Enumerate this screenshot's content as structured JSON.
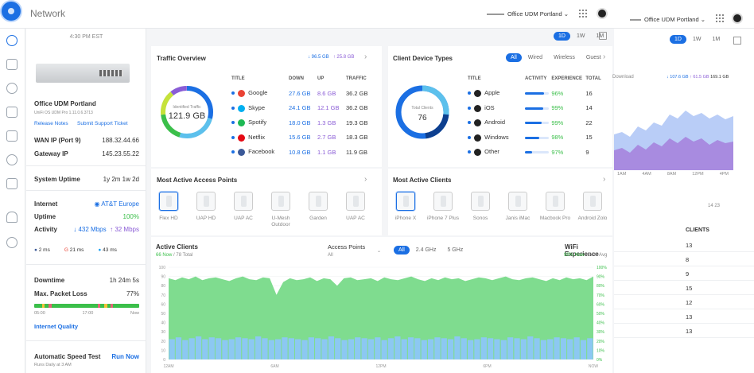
{
  "app": {
    "title": "Network",
    "site": "Office UDM Portland",
    "site_right": "Office UDM Portland"
  },
  "device": {
    "time": "4:30 PM EST",
    "name": "Office UDM Portland",
    "subtitle": "UniFi OS UDM Pro 1.11.0.6.3713",
    "release_notes": "Release Notes",
    "support": "Submit Support Ticket",
    "wan_label": "WAN IP (Port 9)",
    "wan_value": "188.32.44.66",
    "gw_label": "Gateway IP",
    "gw_value": "145.23.55.22",
    "uptime_label": "System Uptime",
    "uptime_value": "1y 2m 1w 2d",
    "internet_label": "Internet",
    "isp": "AT&T Europe",
    "uptime2_label": "Uptime",
    "uptime2_value": "100%",
    "activity_label": "Activity",
    "down": "432 Mbps",
    "up": "32 Mbps",
    "pings": [
      "2 ms",
      "21 ms",
      "43 ms"
    ],
    "downtime_label": "Downtime",
    "downtime_value": "1h 24m 5s",
    "loss_label": "Max. Packet Loss",
    "loss_value": "77%",
    "bar_ticks": [
      "05:00",
      "17:00",
      "Now"
    ],
    "quality_link": "Internet Quality",
    "speed_label": "Automatic Speed Test",
    "speed_action": "Run Now",
    "speed_sub": "Runs Daily at 3 AM"
  },
  "range_tabs": [
    "1D",
    "1W",
    "1M"
  ],
  "traffic": {
    "title": "Traffic Overview",
    "down": "96.5 GB",
    "up": "25.8 GB",
    "donut_label": "Identified Traffic",
    "donut_value": "121.9 GB",
    "headers": [
      "TITLE",
      "DOWN",
      "UP",
      "TRAFFIC"
    ],
    "rows": [
      {
        "name": "Google",
        "down": "27.6 GB",
        "up": "8.6 GB",
        "total": "36.2 GB",
        "color": "#ea4335"
      },
      {
        "name": "Skype",
        "down": "24.1 GB",
        "up": "12.1 GB",
        "total": "36.2 GB",
        "color": "#00aff0"
      },
      {
        "name": "Spotify",
        "down": "18.0 GB",
        "up": "1.3 GB",
        "total": "19.3 GB",
        "color": "#1db954"
      },
      {
        "name": "Netflix",
        "down": "15.6 GB",
        "up": "2.7 GB",
        "total": "18.3 GB",
        "color": "#e50914"
      },
      {
        "name": "Facebook",
        "down": "10.8 GB",
        "up": "1.1 GB",
        "total": "11.9 GB",
        "color": "#3b5998"
      }
    ]
  },
  "clients": {
    "title": "Client Device Types",
    "tabs": [
      "All",
      "Wired",
      "Wireless",
      "Guest"
    ],
    "donut_label": "Total Clients",
    "donut_value": "76",
    "headers": [
      "TITLE",
      "ACTIVITY",
      "EXPERIENCE",
      "TOTAL"
    ],
    "rows": [
      {
        "name": "Apple",
        "activity": 0.8,
        "exp": "96%",
        "total": "16"
      },
      {
        "name": "iOS",
        "activity": 0.75,
        "exp": "99%",
        "total": "14"
      },
      {
        "name": "Android",
        "activity": 0.7,
        "exp": "99%",
        "total": "22"
      },
      {
        "name": "Windows",
        "activity": 0.6,
        "exp": "98%",
        "total": "15"
      },
      {
        "name": "Other",
        "activity": 0.3,
        "exp": "97%",
        "total": "9"
      }
    ]
  },
  "access_points": {
    "title": "Most Active Access Points",
    "items": [
      "Flex HD",
      "UAP HD",
      "UAP AC",
      "U-Mesh Outdoor",
      "Garden",
      "UAP AC"
    ]
  },
  "active_clients_devices": {
    "title": "Most Active Clients",
    "items": [
      "iPhone X",
      "iPhone 7 Plus",
      "Sonos",
      "Janis iMac",
      "Macbook Pro",
      "Android Zolo"
    ]
  },
  "active_clients": {
    "title": "Active Clients",
    "now": "66 Now",
    "avg": "78 Total",
    "ap_label": "Access Points",
    "ap_value": "All",
    "bands": [
      "All",
      "2.4 GHz",
      "5 GHz"
    ],
    "wifi_label": "WiFi Experience",
    "wifi_now": "99% Now",
    "wifi_avg": "94% Avg"
  },
  "right_panel": {
    "legend_down": "Download",
    "rx": "107.6 GB",
    "tx": "61.5 GB",
    "total": "169.1 GB",
    "x_labels": [
      "1AM",
      "4AM",
      "8AM",
      "12PM",
      "4PM"
    ],
    "counts": "14  23",
    "clients_header": "CLIENTS",
    "clients": [
      "13",
      "8",
      "9",
      "15",
      "12",
      "13",
      "13"
    ]
  },
  "chart_data": {
    "type": "area",
    "x_ticks": [
      "12AM",
      "6AM",
      "12PM",
      "6PM",
      "NOW"
    ],
    "y_ticks": [
      "100",
      "90",
      "80",
      "70",
      "60",
      "50",
      "40",
      "30",
      "20",
      "10",
      "0"
    ],
    "y2_ticks": [
      "100%",
      "90%",
      "80%",
      "70%",
      "60%",
      "50%",
      "40%",
      "30%",
      "20%",
      "10%",
      "0%"
    ],
    "ylim": [
      0,
      100
    ],
    "series": [
      {
        "name": "Active Clients",
        "values": [
          88,
          86,
          89,
          87,
          90,
          86,
          88,
          89,
          87,
          85,
          88,
          90,
          87,
          86,
          89,
          88,
          70,
          84,
          88,
          86,
          87,
          89,
          85,
          88,
          87,
          80,
          88,
          89,
          86,
          87,
          88,
          85,
          89,
          87,
          86,
          88,
          90,
          87,
          85,
          88,
          86,
          89,
          87,
          88,
          85,
          87,
          89,
          88,
          86,
          88,
          90,
          87,
          86,
          88,
          89,
          87,
          85,
          88,
          86,
          89,
          87,
          88,
          86,
          90
        ]
      },
      {
        "name": "WiFi Experience",
        "values": [
          22,
          24,
          21,
          23,
          25,
          22,
          24,
          23,
          21,
          22,
          24,
          23,
          22,
          25,
          23,
          21,
          22,
          24,
          23,
          22,
          21,
          24,
          23,
          22,
          25,
          23,
          21,
          22,
          24,
          23,
          22,
          24,
          21,
          23,
          25,
          22,
          24,
          23,
          21,
          22,
          24,
          23,
          22,
          25,
          23,
          21,
          22,
          24,
          23,
          22,
          21,
          24,
          23,
          22,
          25,
          23,
          21,
          22,
          24,
          23,
          22,
          24,
          21,
          23
        ]
      }
    ]
  }
}
